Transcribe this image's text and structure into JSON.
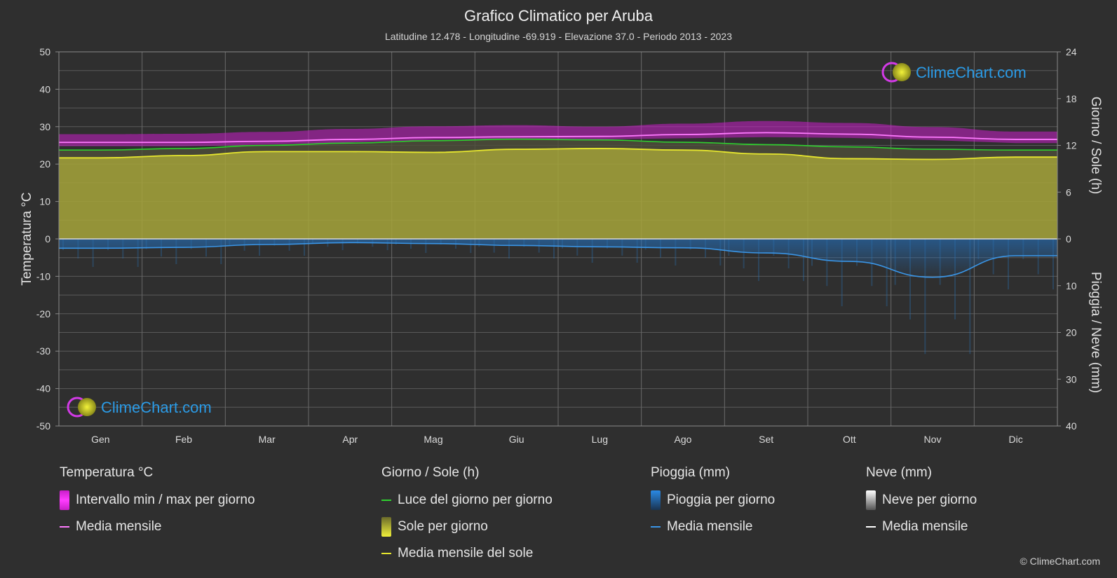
{
  "header": {
    "title": "Grafico Climatico per Aruba",
    "subtitle": "Latitudine 12.478 - Longitudine -69.919 - Elevazione 37.0 - Periodo 2013 - 2023"
  },
  "logo_text": "ClimeChart.com",
  "copyright": "© ClimeChart.com",
  "colors": {
    "background": "#2f2f2f",
    "temp_band": "#c81ec8",
    "temp_mean": "#ff7aff",
    "daylight": "#2fd12f",
    "sun_fill": "#a6a53a",
    "sun_mean": "#e6e62e",
    "rain": "#2277cc",
    "rain_mean": "#3a95e6",
    "snow_mean": "#ffffff",
    "logo": "#2b9be6"
  },
  "chart_data": {
    "type": "line",
    "months": [
      "Gen",
      "Feb",
      "Mar",
      "Apr",
      "Mag",
      "Giu",
      "Lug",
      "Ago",
      "Set",
      "Ott",
      "Nov",
      "Dic"
    ],
    "left_axis": {
      "label": "Temperatura °C",
      "range": [
        -50,
        50
      ],
      "ticks": [
        50,
        40,
        30,
        20,
        10,
        0,
        -10,
        -20,
        -30,
        -40,
        -50
      ]
    },
    "right_axis_top": {
      "label": "Giorno / Sole (h)",
      "range": [
        0,
        24
      ],
      "ticks": [
        24,
        18,
        12,
        6,
        0
      ]
    },
    "right_axis_bottom": {
      "label": "Pioggia / Neve (mm)",
      "range": [
        0,
        40
      ],
      "ticks": [
        0,
        10,
        20,
        30,
        40
      ]
    },
    "series": [
      {
        "name": "Intervallo min / max per giorno",
        "unit": "°C",
        "min": [
          24.8,
          24.8,
          25.2,
          25.8,
          26.5,
          26.8,
          26.6,
          26.9,
          27.2,
          27.0,
          26.4,
          25.6
        ],
        "max": [
          28.0,
          28.1,
          28.6,
          29.4,
          30.1,
          30.4,
          30.0,
          30.8,
          31.5,
          31.0,
          29.9,
          28.7
        ]
      },
      {
        "name": "Media mensile",
        "unit": "°C",
        "values": [
          25.8,
          25.8,
          26.1,
          26.6,
          27.1,
          27.3,
          27.4,
          27.9,
          28.4,
          28.0,
          27.2,
          26.6
        ]
      },
      {
        "name": "Luce del giorno per giorno",
        "unit": "h",
        "values": [
          11.4,
          11.6,
          12.0,
          12.3,
          12.6,
          12.8,
          12.7,
          12.4,
          12.1,
          11.8,
          11.5,
          11.4
        ]
      },
      {
        "name": "Sole per giorno",
        "unit": "h",
        "values": [
          10.4,
          10.7,
          11.2,
          11.2,
          11.1,
          11.5,
          11.6,
          11.4,
          10.9,
          10.3,
          10.2,
          10.5
        ]
      },
      {
        "name": "Media mensile del sole",
        "unit": "h",
        "values": [
          10.4,
          10.7,
          11.2,
          11.2,
          11.1,
          11.5,
          11.6,
          11.4,
          10.9,
          10.3,
          10.2,
          10.5
        ]
      },
      {
        "name": "Pioggia per giorno",
        "unit": "mm",
        "values": [
          2.0,
          1.8,
          1.2,
          0.8,
          1.0,
          1.4,
          1.7,
          1.9,
          3.0,
          4.8,
          8.2,
          3.6
        ]
      },
      {
        "name": "Media mensile",
        "unit": "mm",
        "values": [
          2.0,
          1.8,
          1.2,
          0.8,
          1.0,
          1.4,
          1.7,
          1.9,
          3.0,
          4.8,
          8.2,
          3.6
        ]
      }
    ]
  },
  "legend": {
    "temperature": {
      "title": "Temperatura °C",
      "range_label": "Intervallo min / max per giorno",
      "mean_label": "Media mensile"
    },
    "daysun": {
      "title": "Giorno / Sole (h)",
      "daylight_label": "Luce del giorno per giorno",
      "sun_label": "Sole per giorno",
      "sun_mean_label": "Media mensile del sole"
    },
    "rain": {
      "title": "Pioggia (mm)",
      "rain_label": "Pioggia per giorno",
      "mean_label": "Media mensile"
    },
    "snow": {
      "title": "Neve (mm)",
      "snow_label": "Neve per giorno",
      "mean_label": "Media mensile"
    }
  }
}
